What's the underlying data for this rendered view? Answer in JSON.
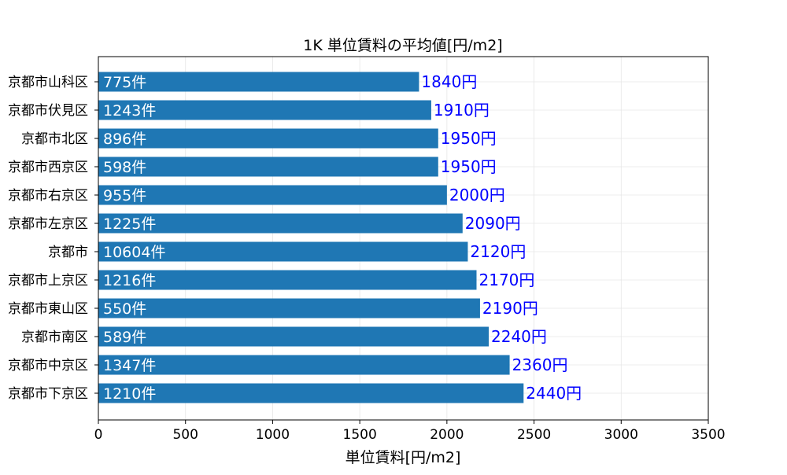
{
  "chart_data": {
    "type": "bar",
    "orientation": "horizontal",
    "title": "1K 単位賃料の平均値[円/m2]",
    "xlabel": "単位賃料[円/m2]",
    "ylabel": "",
    "xlim": [
      0,
      3500
    ],
    "xticks": [
      0,
      500,
      1000,
      1500,
      2000,
      2500,
      3000,
      3500
    ],
    "grid": true,
    "categories": [
      "京都市下京区",
      "京都市中京区",
      "京都市南区",
      "京都市東山区",
      "京都市上京区",
      "京都市",
      "京都市左京区",
      "京都市右京区",
      "京都市西京区",
      "京都市北区",
      "京都市伏見区",
      "京都市山科区"
    ],
    "values": [
      2440,
      2360,
      2240,
      2190,
      2170,
      2120,
      2090,
      2000,
      1950,
      1950,
      1910,
      1840
    ],
    "value_labels": [
      "2440円",
      "2360円",
      "2240円",
      "2190円",
      "2170円",
      "2120円",
      "2090円",
      "2000円",
      "1950円",
      "1950円",
      "1910円",
      "1840円"
    ],
    "count_labels": [
      "1210件",
      "1347件",
      "589件",
      "550件",
      "1216件",
      "10604件",
      "1225件",
      "955件",
      "598件",
      "896件",
      "1243件",
      "775件"
    ],
    "colors": {
      "bar": "#1f77b4",
      "value_label": "#0000ff",
      "count_label": "#ffffff",
      "grid": "#e6e6e6"
    }
  }
}
